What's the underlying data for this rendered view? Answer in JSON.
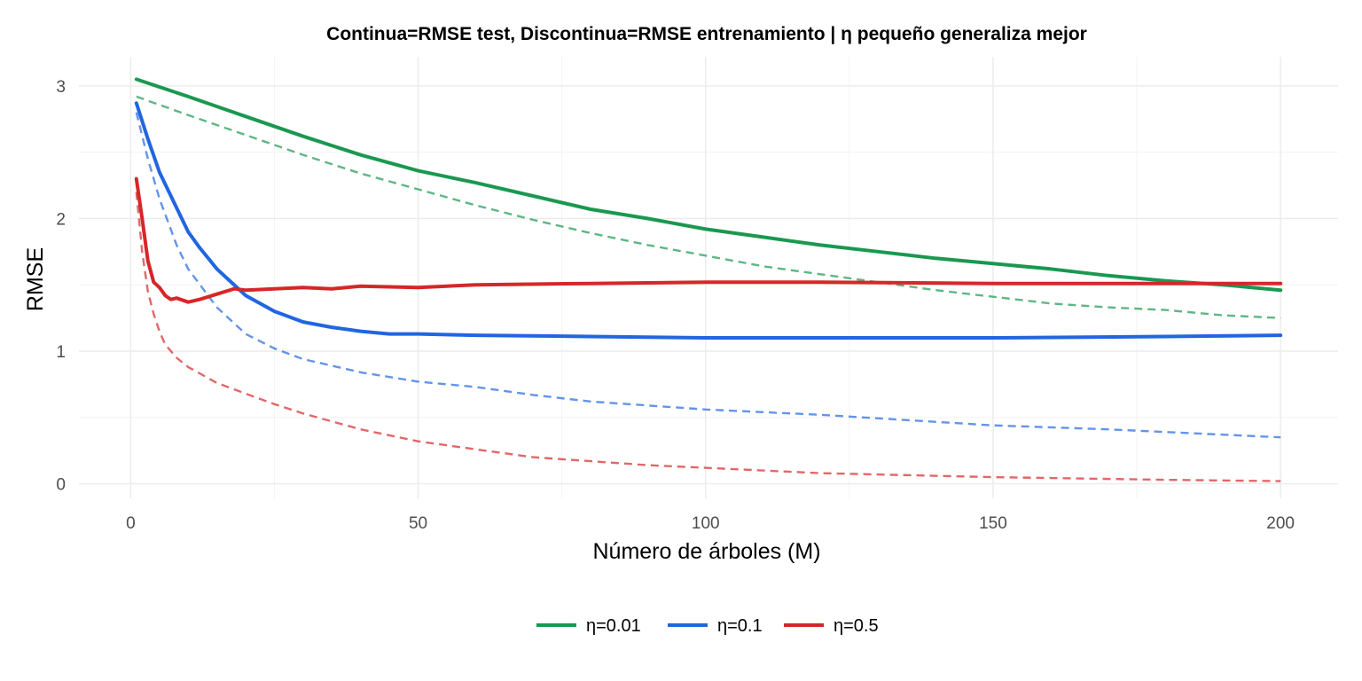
{
  "chart_data": {
    "type": "line",
    "title": "Continua=RMSE test, Discontinua=RMSE entrenamiento | η pequeño generaliza mejor",
    "xlabel": "Número de árboles (M)",
    "ylabel": "RMSE",
    "xlim": [
      1,
      200
    ],
    "ylim": [
      0,
      3.05
    ],
    "x_ticks": [
      0,
      50,
      100,
      150,
      200
    ],
    "y_ticks": [
      0,
      1,
      2,
      3
    ],
    "grid": true,
    "legend_position": "bottom",
    "series": [
      {
        "name": "η=0.01",
        "color": "#1a9850",
        "test": {
          "x": [
            1,
            10,
            20,
            30,
            40,
            50,
            60,
            70,
            80,
            90,
            100,
            110,
            120,
            130,
            140,
            150,
            160,
            170,
            180,
            190,
            200
          ],
          "y": [
            3.05,
            2.92,
            2.77,
            2.62,
            2.48,
            2.36,
            2.27,
            2.17,
            2.07,
            2.0,
            1.92,
            1.86,
            1.8,
            1.75,
            1.7,
            1.66,
            1.62,
            1.57,
            1.53,
            1.5,
            1.46
          ]
        },
        "train": {
          "x": [
            1,
            10,
            20,
            30,
            40,
            50,
            60,
            70,
            80,
            90,
            100,
            110,
            120,
            130,
            140,
            150,
            160,
            170,
            180,
            190,
            200
          ],
          "y": [
            2.92,
            2.78,
            2.63,
            2.48,
            2.34,
            2.22,
            2.1,
            1.99,
            1.89,
            1.8,
            1.72,
            1.64,
            1.58,
            1.52,
            1.46,
            1.41,
            1.36,
            1.33,
            1.31,
            1.27,
            1.25
          ]
        }
      },
      {
        "name": "η=0.1",
        "color": "#2166e0",
        "test": {
          "x": [
            1,
            3,
            5,
            8,
            10,
            12,
            15,
            20,
            25,
            30,
            35,
            40,
            45,
            50,
            60,
            80,
            100,
            120,
            150,
            180,
            200
          ],
          "y": [
            2.87,
            2.6,
            2.35,
            2.08,
            1.9,
            1.78,
            1.62,
            1.42,
            1.3,
            1.22,
            1.18,
            1.15,
            1.13,
            1.13,
            1.12,
            1.11,
            1.1,
            1.1,
            1.1,
            1.11,
            1.12
          ]
        },
        "train": {
          "x": [
            1,
            3,
            5,
            8,
            10,
            15,
            20,
            25,
            30,
            40,
            50,
            60,
            70,
            80,
            100,
            120,
            150,
            170,
            200
          ],
          "y": [
            2.8,
            2.45,
            2.15,
            1.8,
            1.62,
            1.33,
            1.13,
            1.02,
            0.94,
            0.84,
            0.77,
            0.73,
            0.67,
            0.62,
            0.56,
            0.52,
            0.44,
            0.41,
            0.35
          ]
        }
      },
      {
        "name": "η=0.5",
        "color": "#d62728",
        "test": {
          "x": [
            1,
            2,
            3,
            4,
            5,
            6,
            7,
            8,
            10,
            12,
            15,
            18,
            20,
            25,
            30,
            35,
            40,
            50,
            60,
            80,
            100,
            120,
            150,
            180,
            200
          ],
          "y": [
            2.3,
            2.0,
            1.68,
            1.52,
            1.48,
            1.42,
            1.39,
            1.4,
            1.37,
            1.39,
            1.43,
            1.47,
            1.46,
            1.47,
            1.48,
            1.47,
            1.49,
            1.48,
            1.5,
            1.51,
            1.52,
            1.52,
            1.51,
            1.51,
            1.51
          ]
        },
        "train": {
          "x": [
            1,
            2,
            3,
            4,
            5,
            6,
            8,
            10,
            15,
            20,
            25,
            30,
            40,
            50,
            60,
            70,
            80,
            90,
            100,
            120,
            150,
            180,
            200
          ],
          "y": [
            2.2,
            1.75,
            1.45,
            1.28,
            1.15,
            1.05,
            0.95,
            0.88,
            0.76,
            0.68,
            0.6,
            0.53,
            0.41,
            0.32,
            0.26,
            0.2,
            0.17,
            0.14,
            0.12,
            0.08,
            0.05,
            0.03,
            0.02
          ]
        }
      }
    ]
  }
}
